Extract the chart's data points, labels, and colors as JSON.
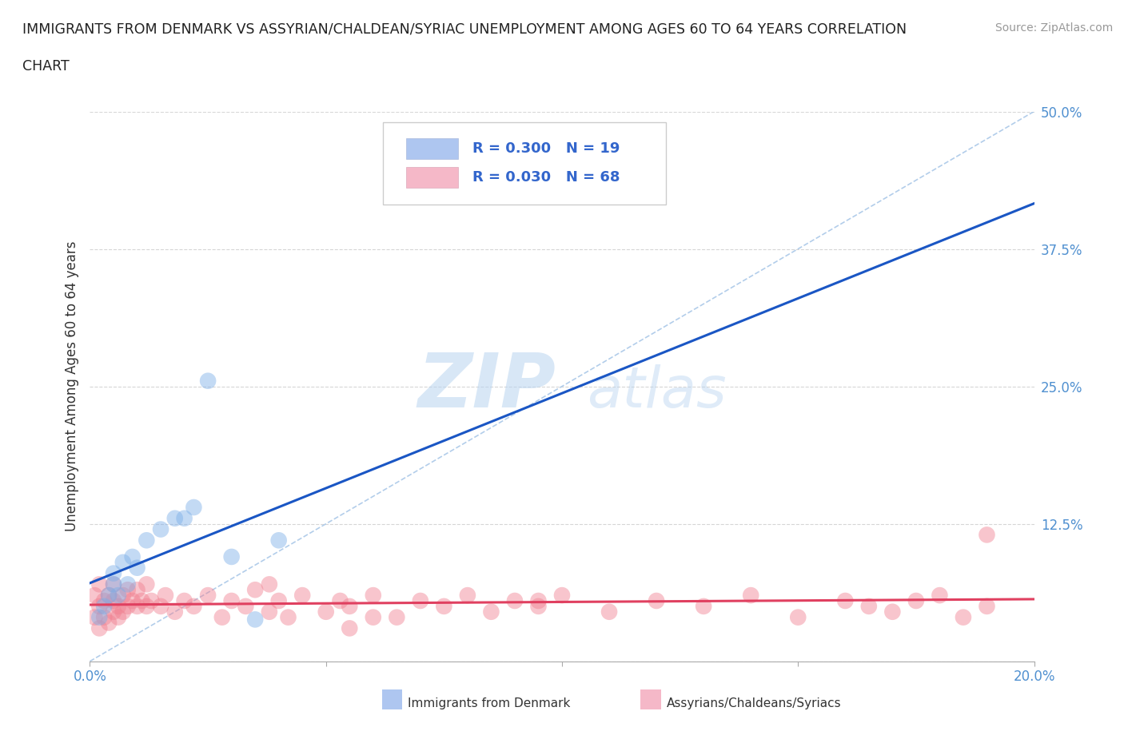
{
  "title": "IMMIGRANTS FROM DENMARK VS ASSYRIAN/CHALDEAN/SYRIAC UNEMPLOYMENT AMONG AGES 60 TO 64 YEARS CORRELATION\nCHART",
  "source": "Source: ZipAtlas.com",
  "ylabel": "Unemployment Among Ages 60 to 64 years",
  "xlim": [
    0,
    0.2
  ],
  "ylim": [
    0,
    0.5
  ],
  "legend1_label": "R = 0.300   N = 19",
  "legend2_label": "R = 0.030   N = 68",
  "legend1_color": "#aec6f0",
  "legend2_color": "#f5b8c8",
  "denmark_dots_x": [
    0.002,
    0.003,
    0.004,
    0.005,
    0.005,
    0.006,
    0.007,
    0.008,
    0.009,
    0.01,
    0.012,
    0.015,
    0.018,
    0.02,
    0.022,
    0.025,
    0.03,
    0.035,
    0.04
  ],
  "denmark_dots_y": [
    0.04,
    0.05,
    0.06,
    0.07,
    0.08,
    0.06,
    0.09,
    0.07,
    0.095,
    0.085,
    0.11,
    0.12,
    0.13,
    0.13,
    0.14,
    0.255,
    0.095,
    0.038,
    0.11
  ],
  "assyrian_dots_x": [
    0.001,
    0.001,
    0.002,
    0.002,
    0.002,
    0.003,
    0.003,
    0.004,
    0.004,
    0.005,
    0.005,
    0.005,
    0.006,
    0.006,
    0.007,
    0.007,
    0.008,
    0.008,
    0.009,
    0.01,
    0.01,
    0.011,
    0.012,
    0.012,
    0.013,
    0.015,
    0.016,
    0.018,
    0.02,
    0.022,
    0.025,
    0.028,
    0.03,
    0.033,
    0.035,
    0.038,
    0.04,
    0.042,
    0.045,
    0.05,
    0.053,
    0.055,
    0.06,
    0.065,
    0.07,
    0.075,
    0.08,
    0.085,
    0.09,
    0.095,
    0.1,
    0.11,
    0.12,
    0.13,
    0.14,
    0.15,
    0.16,
    0.165,
    0.17,
    0.175,
    0.18,
    0.185,
    0.19,
    0.038,
    0.055,
    0.06,
    0.095,
    0.19
  ],
  "assyrian_dots_y": [
    0.04,
    0.06,
    0.03,
    0.05,
    0.07,
    0.04,
    0.055,
    0.035,
    0.06,
    0.045,
    0.055,
    0.07,
    0.04,
    0.05,
    0.045,
    0.06,
    0.05,
    0.065,
    0.055,
    0.05,
    0.065,
    0.055,
    0.05,
    0.07,
    0.055,
    0.05,
    0.06,
    0.045,
    0.055,
    0.05,
    0.06,
    0.04,
    0.055,
    0.05,
    0.065,
    0.045,
    0.055,
    0.04,
    0.06,
    0.045,
    0.055,
    0.05,
    0.06,
    0.04,
    0.055,
    0.05,
    0.06,
    0.045,
    0.055,
    0.05,
    0.06,
    0.045,
    0.055,
    0.05,
    0.06,
    0.04,
    0.055,
    0.05,
    0.045,
    0.055,
    0.06,
    0.04,
    0.05,
    0.07,
    0.03,
    0.04,
    0.055,
    0.115
  ],
  "dot_size": 220,
  "dot_alpha": 0.45,
  "denmark_color": "#7baee8",
  "assyrian_color": "#f08090",
  "regression_denmark_color": "#1a56c4",
  "regression_assyrian_color": "#e04060",
  "diagonal_color": "#aac8e8",
  "grid_color": "#cccccc",
  "background_color": "#ffffff"
}
